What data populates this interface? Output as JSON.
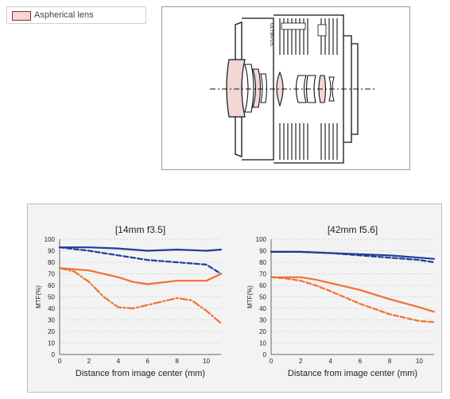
{
  "legend": {
    "label": "Aspherical lens",
    "swatch_color": "#f3d6d6"
  },
  "lens_diagram": {
    "brand_text": "OLYMPUS",
    "colors": {
      "aspherical_fill": "#f3d6d6",
      "line": "#111111"
    }
  },
  "colors": {
    "sagittal": "#1f3d99",
    "meridional": "#f07030",
    "panel_bg": "#f3f3f3",
    "grid": "#bbbbbb"
  },
  "chart_data": [
    {
      "type": "line",
      "title": "[14mm f3.5]",
      "xlabel": "Distance from image center (mm)",
      "ylabel": "MTF(%)",
      "xlim": [
        0,
        11
      ],
      "ylim": [
        0,
        100
      ],
      "xticks": [
        0,
        2,
        4,
        6,
        8,
        10
      ],
      "yticks": [
        0,
        10,
        20,
        30,
        40,
        50,
        60,
        70,
        80,
        90,
        100
      ],
      "grid": true,
      "series": [
        {
          "color": "#1f3d99",
          "style": "solid",
          "x": [
            0,
            2,
            4,
            6,
            8,
            10,
            11
          ],
          "values": [
            93,
            93,
            92,
            90,
            91,
            90,
            91
          ]
        },
        {
          "color": "#1f3d99",
          "style": "dashed",
          "x": [
            0,
            2,
            4,
            6,
            8,
            10,
            11
          ],
          "values": [
            93,
            90,
            86,
            82,
            80,
            78,
            70
          ]
        },
        {
          "color": "#f07030",
          "style": "solid",
          "x": [
            0,
            2,
            4,
            5,
            6,
            8,
            10,
            11
          ],
          "values": [
            75,
            73,
            67,
            63,
            61,
            64,
            64,
            70
          ]
        },
        {
          "color": "#f07030",
          "style": "dashdot",
          "x": [
            0,
            1,
            2,
            3,
            4,
            5,
            6,
            8,
            9,
            10,
            11
          ],
          "values": [
            75,
            72,
            63,
            50,
            41,
            40,
            43,
            49,
            47,
            38,
            27
          ]
        }
      ]
    },
    {
      "type": "line",
      "title": "[42mm f5.6]",
      "xlabel": "Distance from image center (mm)",
      "ylabel": "MTF(%)",
      "xlim": [
        0,
        11
      ],
      "ylim": [
        0,
        100
      ],
      "xticks": [
        0,
        2,
        4,
        6,
        8,
        10
      ],
      "yticks": [
        0,
        10,
        20,
        30,
        40,
        50,
        60,
        70,
        80,
        90,
        100
      ],
      "grid": true,
      "series": [
        {
          "color": "#1f3d99",
          "style": "solid",
          "x": [
            0,
            2,
            4,
            6,
            8,
            10,
            11
          ],
          "values": [
            89,
            89,
            88,
            87,
            86,
            84,
            83
          ]
        },
        {
          "color": "#1f3d99",
          "style": "dashed",
          "x": [
            0,
            2,
            4,
            6,
            8,
            10,
            11
          ],
          "values": [
            89,
            89,
            88,
            86,
            84,
            82,
            80
          ]
        },
        {
          "color": "#f07030",
          "style": "solid",
          "x": [
            0,
            2,
            3,
            4,
            6,
            8,
            10,
            11
          ],
          "values": [
            67,
            67,
            65,
            62,
            56,
            48,
            41,
            37
          ]
        },
        {
          "color": "#f07030",
          "style": "dashed",
          "x": [
            0,
            1,
            2,
            3,
            4,
            6,
            8,
            10,
            11
          ],
          "values": [
            67,
            66,
            64,
            60,
            55,
            44,
            35,
            29,
            28
          ]
        }
      ]
    }
  ]
}
